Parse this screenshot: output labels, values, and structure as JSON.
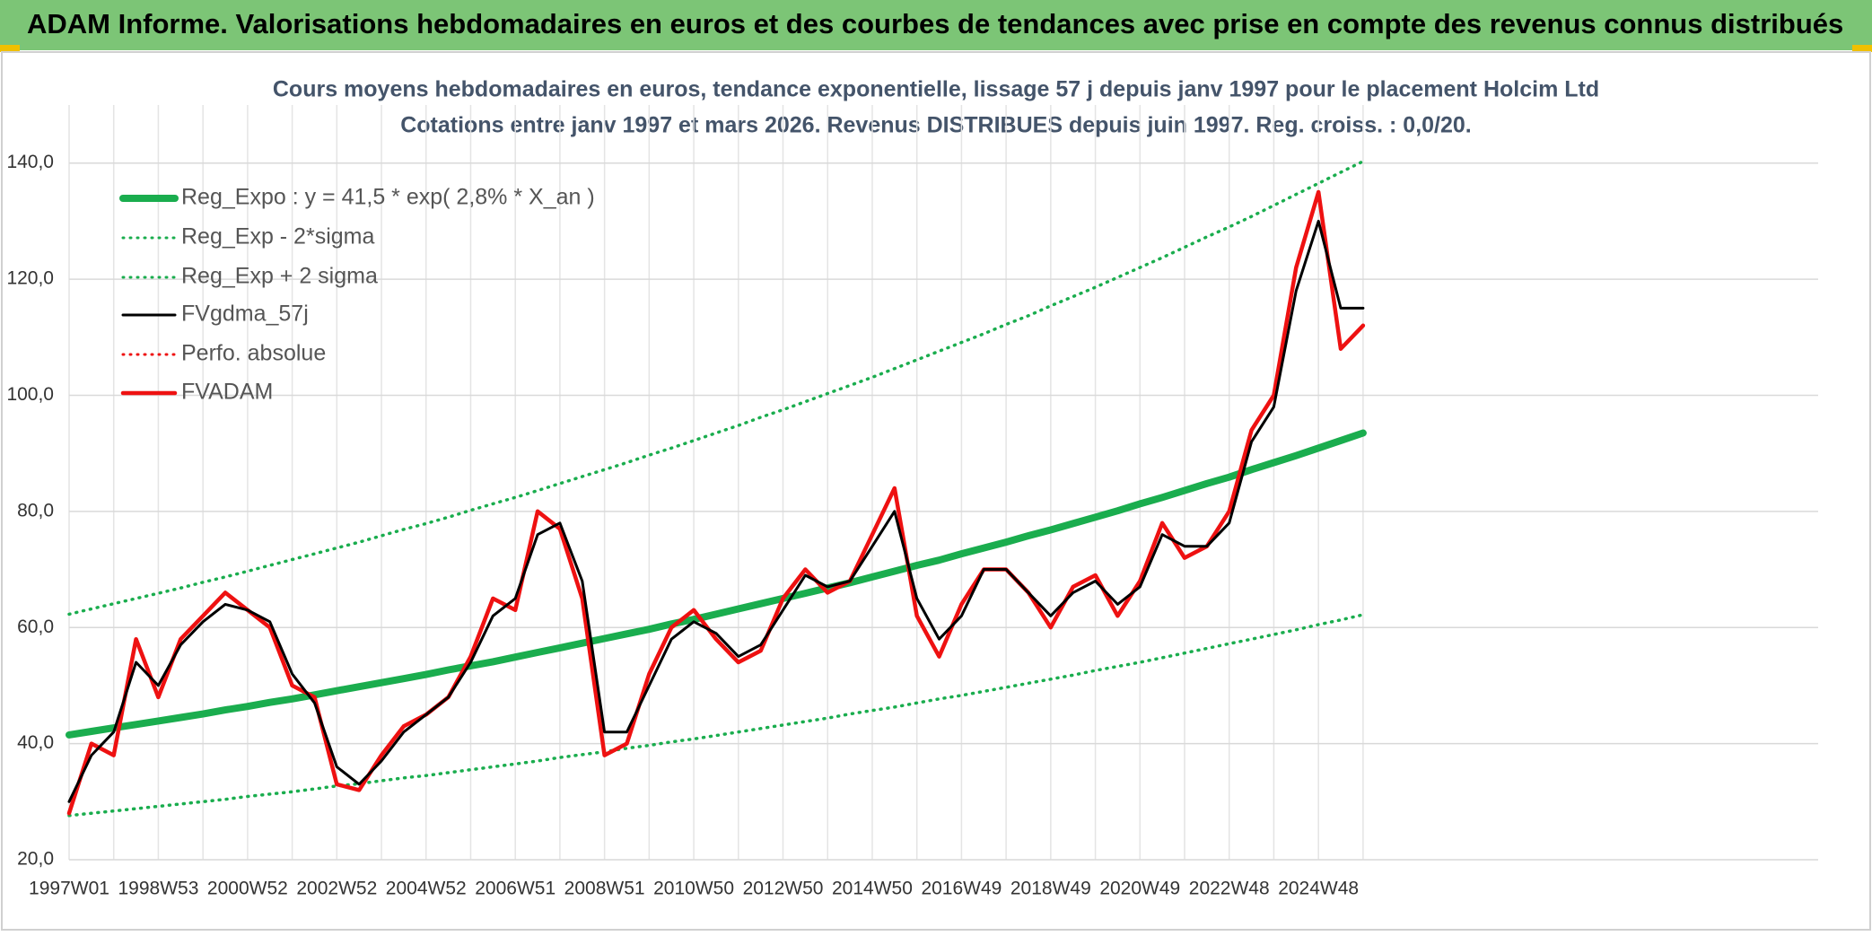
{
  "header": "ADAM Informe. Valorisations hebdomadaires en euros et des courbes de tendances avec prise en compte des revenus connus distribués",
  "chart_data": {
    "type": "line",
    "title": "Cours moyens hebdomadaires en euros, tendance exponentielle, lissage 57 j depuis janv 1997 pour le placement Holcim Ltd",
    "subtitle": "Cotations entre janv 1997 et mars 2026. Revenus DISTRIBUES depuis juin 1997. Reg. croiss. : 0,0/20.",
    "categories": [
      "1997W01",
      null,
      null,
      null,
      "1998W53",
      null,
      null,
      null,
      "2000W52",
      null,
      null,
      null,
      "2002W52",
      null,
      null,
      null,
      "2004W52",
      null,
      null,
      null,
      "2006W51",
      null,
      null,
      null,
      "2008W51",
      null,
      null,
      null,
      "2010W50",
      null,
      null,
      null,
      "2012W50",
      null,
      null,
      null,
      "2014W50",
      null,
      null,
      null,
      "2016W49",
      null,
      null,
      null,
      "2018W49",
      null,
      null,
      null,
      "2020W49",
      null,
      null,
      null,
      "2022W48",
      null,
      null,
      null,
      "2024W48",
      null,
      null
    ],
    "ylim": [
      20,
      150
    ],
    "yticks": [
      {
        "value": 20,
        "label": "20,0"
      },
      {
        "value": 40,
        "label": "40,0"
      },
      {
        "value": 60,
        "label": "60,0"
      },
      {
        "value": 80,
        "label": "80,0"
      },
      {
        "value": 100,
        "label": "100,0"
      },
      {
        "value": 120,
        "label": "120,0"
      },
      {
        "value": 140,
        "label": "140,0"
      }
    ],
    "grid": true,
    "legend": "top-left",
    "series": [
      {
        "name": "Reg_Expo : y = 41,5 * exp( 2,8% *  X_an )",
        "color": "#1aad4e",
        "style": "solid",
        "values": [
          41.5,
          42.1,
          42.7,
          43.3,
          43.9,
          44.5,
          45.1,
          45.8,
          46.4,
          47.1,
          47.7,
          48.4,
          49.1,
          49.8,
          50.5,
          51.2,
          51.9,
          52.7,
          53.4,
          54.1,
          54.9,
          55.7,
          56.5,
          57.3,
          58.1,
          58.9,
          59.7,
          60.6,
          61.4,
          62.3,
          63.2,
          64.1,
          65.0,
          65.9,
          66.8,
          67.7,
          68.7,
          69.7,
          70.7,
          71.6,
          72.7,
          73.7,
          74.7,
          75.8,
          76.8,
          77.9,
          79.0,
          80.1,
          81.3,
          82.4,
          83.6,
          84.8,
          85.9,
          87.2,
          88.4,
          89.6,
          90.9,
          92.2,
          93.5
        ]
      },
      {
        "name": "Reg_Exp - 2*sigma",
        "color": "#1aad4e",
        "style": "dotted",
        "values": [
          27.6,
          28.0,
          28.4,
          28.8,
          29.2,
          29.6,
          30.0,
          30.4,
          30.9,
          31.3,
          31.7,
          32.2,
          32.7,
          33.1,
          33.6,
          34.1,
          34.5,
          35.0,
          35.5,
          36.0,
          36.5,
          37.0,
          37.6,
          38.1,
          38.6,
          39.2,
          39.7,
          40.3,
          40.8,
          41.4,
          42.0,
          42.6,
          43.2,
          43.8,
          44.4,
          45.1,
          45.7,
          46.3,
          47.0,
          47.7,
          48.3,
          49.0,
          49.7,
          50.4,
          51.1,
          51.8,
          52.6,
          53.3,
          54.0,
          54.8,
          55.6,
          56.4,
          57.2,
          58.0,
          58.8,
          59.6,
          60.5,
          61.3,
          62.2
        ]
      },
      {
        "name": "Reg_Exp + 2 sigma",
        "color": "#1aad4e",
        "style": "dotted",
        "values": [
          62.3,
          63.2,
          64.1,
          65.0,
          65.9,
          66.8,
          67.8,
          68.7,
          69.7,
          70.7,
          71.7,
          72.7,
          73.7,
          74.7,
          75.8,
          76.9,
          77.9,
          79.0,
          80.2,
          81.3,
          82.4,
          83.6,
          84.8,
          86.0,
          87.2,
          88.4,
          89.7,
          90.9,
          92.2,
          93.5,
          94.8,
          96.2,
          97.5,
          98.9,
          100.3,
          101.7,
          103.1,
          104.6,
          106.1,
          107.6,
          109.1,
          110.6,
          112.2,
          113.7,
          115.4,
          117.0,
          118.6,
          120.3,
          122.0,
          123.7,
          125.5,
          127.3,
          129.0,
          130.8,
          132.7,
          134.6,
          136.5,
          138.4,
          140.3
        ]
      },
      {
        "name": "FVgdma_57j",
        "color": "#000000",
        "style": "thin",
        "values": [
          30,
          38,
          42,
          54,
          50,
          57,
          61,
          64,
          63,
          61,
          52,
          47,
          36,
          33,
          37,
          42,
          45,
          48,
          54,
          62,
          65,
          76,
          78,
          68,
          42,
          42,
          50,
          58,
          61,
          59,
          55,
          57,
          63,
          69,
          67,
          68,
          74,
          80,
          65,
          58,
          62,
          70,
          70,
          66,
          62,
          66,
          68,
          64,
          67,
          76,
          74,
          74,
          78,
          92,
          98,
          118,
          130,
          115,
          115
        ]
      },
      {
        "name": "Perfo. absolue",
        "color": "#ee1111",
        "style": "dotted",
        "values": [
          null,
          null,
          null,
          null,
          null,
          null,
          null,
          null,
          null,
          null,
          null,
          null,
          null,
          null,
          null,
          null,
          null,
          null,
          null,
          null,
          null,
          null,
          null,
          null,
          null,
          null,
          null,
          null,
          null,
          null,
          null,
          null,
          null,
          null,
          null,
          null,
          null,
          null,
          null,
          null,
          null,
          null,
          null,
          null,
          null,
          null,
          null,
          null,
          null,
          null,
          null,
          null,
          null,
          null,
          null,
          null,
          null,
          null,
          null
        ]
      },
      {
        "name": "FVADAM",
        "color": "#ee1111",
        "style": "thick",
        "values": [
          28,
          40,
          38,
          58,
          48,
          58,
          62,
          66,
          63,
          60,
          50,
          48,
          33,
          32,
          38,
          43,
          45,
          48,
          55,
          65,
          63,
          80,
          77,
          65,
          38,
          40,
          52,
          60,
          63,
          58,
          54,
          56,
          65,
          70,
          66,
          68,
          76,
          84,
          62,
          55,
          64,
          70,
          70,
          66,
          60,
          67,
          69,
          62,
          68,
          78,
          72,
          74,
          80,
          94,
          100,
          122,
          135,
          108,
          112
        ]
      }
    ]
  }
}
